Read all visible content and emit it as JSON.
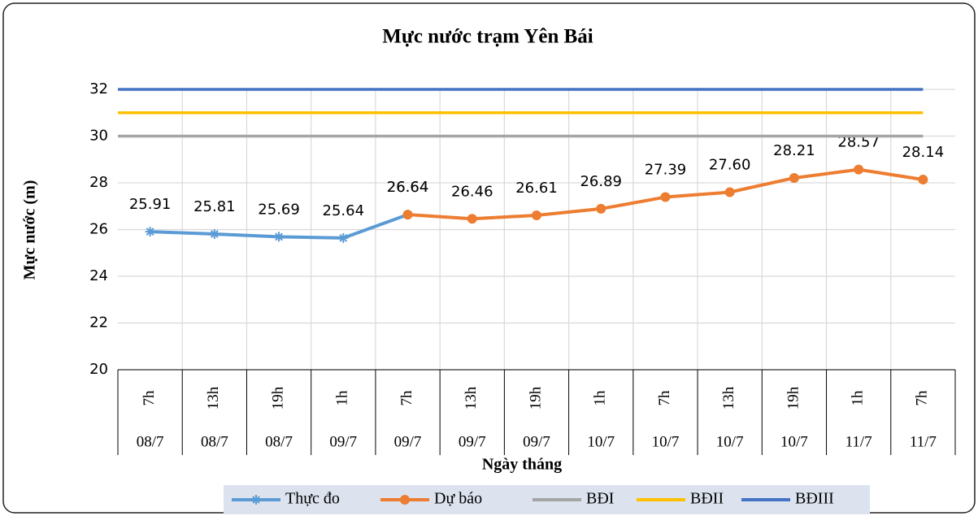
{
  "chart_data": {
    "type": "line",
    "title": "Mực nước trạm Yên Bái",
    "x_label": "Ngày tháng",
    "y_label": "Mực nước (m)",
    "categories": [
      "7h",
      "13h",
      "19h",
      "1h",
      "7h",
      "13h",
      "19h",
      "1h",
      "7h",
      "13h",
      "19h",
      "1h",
      "7h"
    ],
    "category_groups": [
      "08/7",
      "08/7",
      "08/7",
      "09/7",
      "09/7",
      "09/7",
      "09/7",
      "10/7",
      "10/7",
      "10/7",
      "10/7",
      "11/7",
      "11/7"
    ],
    "ylim": [
      20,
      32
    ],
    "yticks": [
      20,
      22,
      24,
      26,
      28,
      30,
      32
    ],
    "grid": true,
    "series": [
      {
        "name": "Thực đo",
        "color": "#5b9bd5",
        "marker": "star",
        "values": [
          25.91,
          25.81,
          25.69,
          25.64,
          26.64,
          null,
          null,
          null,
          null,
          null,
          null,
          null,
          null
        ]
      },
      {
        "name": "Dự báo",
        "color": "#ed7d31",
        "marker": "circle",
        "values": [
          null,
          null,
          null,
          null,
          26.64,
          26.46,
          26.61,
          26.89,
          27.39,
          27.6,
          28.21,
          28.57,
          28.14
        ],
        "value_labels": [
          null,
          null,
          null,
          null,
          "26.64",
          "26.46",
          "26.61",
          "26.89",
          "27.39",
          "27.60",
          "28.21",
          "28.57",
          "28.14"
        ]
      },
      {
        "name": "BĐI",
        "color": "#a5a5a5",
        "value": 30
      },
      {
        "name": "BĐII",
        "color": "#ffc000",
        "value": 31
      },
      {
        "name": "BĐIII",
        "color": "#4472c4",
        "value": 32
      }
    ]
  }
}
